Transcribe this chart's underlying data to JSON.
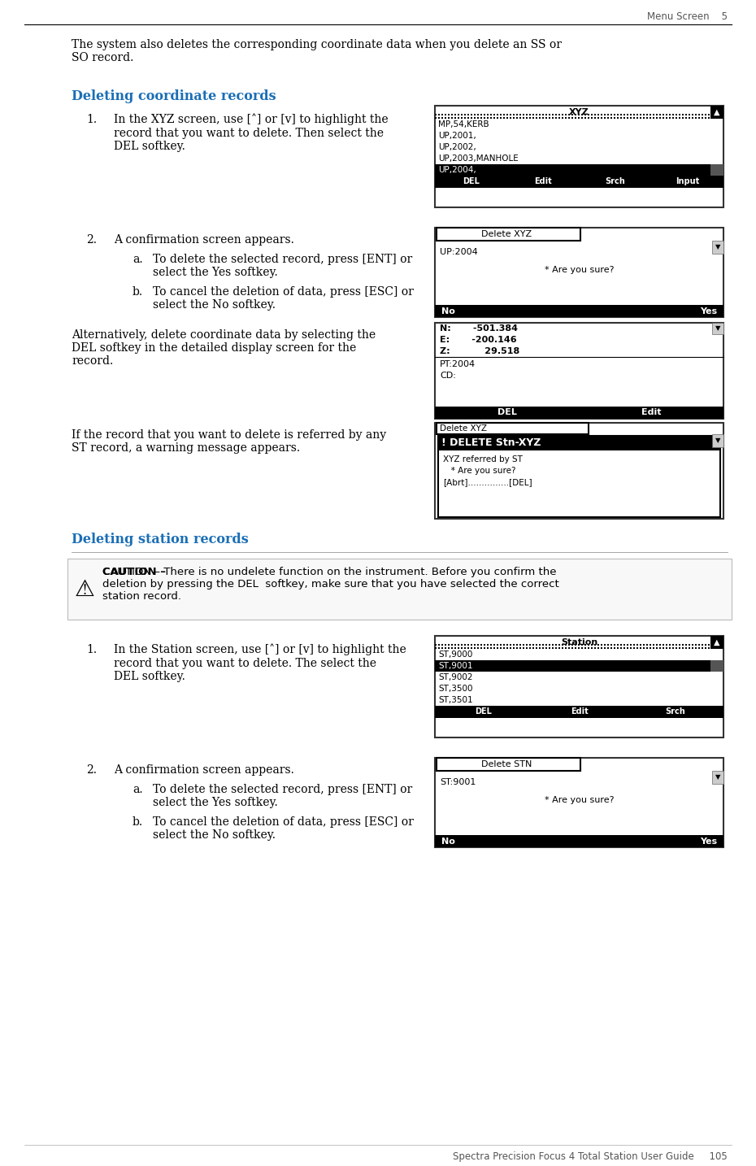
{
  "page_header_right": "Menu Screen    5",
  "page_footer": "Spectra Precision Focus 4 Total Station User Guide     105",
  "intro_text": "The system also deletes the corresponding coordinate data when you delete an SS or\nSO record.",
  "section1_title": "Deleting coordinate records",
  "section2_title": "Deleting station records",
  "caution_bold": "CAUTION – ",
  "caution_rest": "There is no undelete function on the instrument. Before you confirm the deletion by pressing the DEL softkey, make sure that you have selected the correct station record.",
  "screenshots": {
    "xyz_list": {
      "title": "XYZ",
      "title_hatch": true,
      "rows": [
        "MP,54,KERB",
        "UP,2001,",
        "UP,2002,",
        "UP,2003,MANHOLE",
        "UP,2004,"
      ],
      "highlighted_row": 4,
      "softkeys": [
        "DEL",
        "Edit",
        "Srch",
        "Input"
      ],
      "has_scroll_top": true,
      "has_scroll_mid": true
    },
    "xyz_confirm": {
      "title": "Delete XYZ",
      "title_boxed": true,
      "content": [
        "UP:2004",
        "",
        "     * Are you sure?"
      ],
      "softkeys_lr": [
        "No",
        "Yes"
      ],
      "has_scroll": true
    },
    "xyz_detail": {
      "no_title": true,
      "content_bold": [
        "N:       -501.384",
        "E:       -200.146",
        "Z:           29.518"
      ],
      "content_normal": [
        "PT:2004",
        "CD:"
      ],
      "softkeys": [
        "DEL",
        "Edit"
      ],
      "has_scroll": true
    },
    "xyz_warning": {
      "title": "Delete XYZ",
      "title_boxed": true,
      "inner_box": true,
      "content": [
        "! DELETE Stn-XYZ",
        "  XYZ referred by ST",
        "    * Are you sure?",
        "[Abrt]...................[DEL]"
      ],
      "has_scroll": true
    },
    "st_list": {
      "title": "Station",
      "title_hatch": true,
      "rows": [
        "ST,9000",
        "ST,9001",
        "ST,9002",
        "ST,3500",
        "ST,3501"
      ],
      "highlighted_row": 1,
      "softkeys": [
        "DEL",
        "Edit",
        "Srch"
      ],
      "has_scroll_top": true,
      "has_scroll_mid": true
    },
    "st_confirm": {
      "title": "Delete STN",
      "title_boxed": true,
      "content": [
        "ST:9001",
        "",
        "     * Are you sure?"
      ],
      "softkeys_lr": [
        "No",
        "Yes"
      ],
      "has_scroll": true
    }
  },
  "colors": {
    "background": "#ffffff",
    "text": "#1a1a1a",
    "title_color": "#1a6eb5",
    "header_text": "#555555",
    "footer_text": "#555555"
  }
}
